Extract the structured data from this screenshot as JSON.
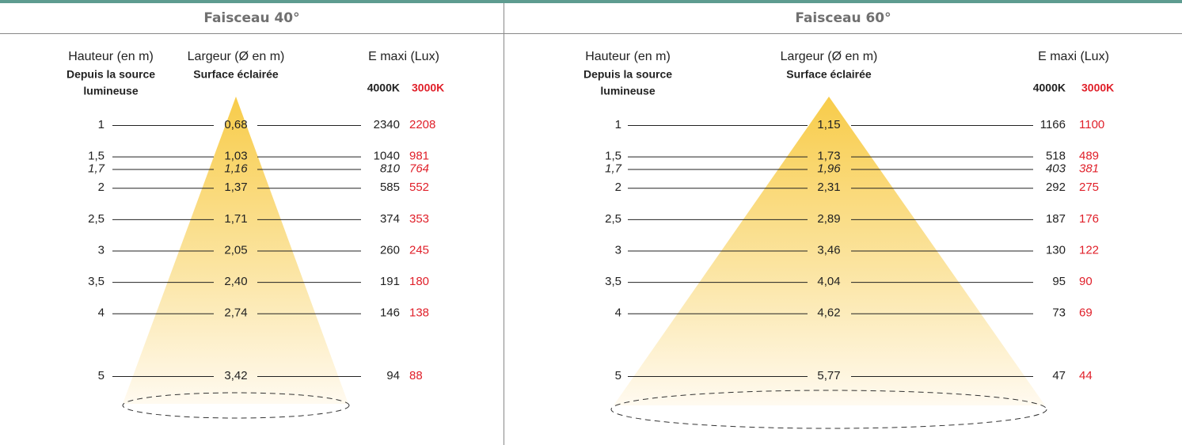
{
  "panels": [
    {
      "title": "Faisceau 40°",
      "headers": {
        "height": "Hauteur (en m)",
        "height_sub": [
          "Depuis la source",
          "lumineuse"
        ],
        "width": "Largeur (Ø en m)",
        "width_sub": "Surface éclairée",
        "lux": "E maxi (Lux)",
        "lux_4000": "4000K",
        "lux_3000": "3000K"
      },
      "rows": [
        {
          "height": "1",
          "width": "0,68",
          "lux_4000": "2340",
          "lux_3000": "2208"
        },
        {
          "height": "1,5",
          "width": "1,03",
          "lux_4000": "1040",
          "lux_3000": "981"
        },
        {
          "height": "1,7",
          "width": "1,16",
          "lux_4000": "810",
          "lux_3000": "764",
          "style": "italic"
        },
        {
          "height": "2",
          "width": "1,37",
          "lux_4000": "585",
          "lux_3000": "552"
        },
        {
          "height": "2,5",
          "width": "1,71",
          "lux_4000": "374",
          "lux_3000": "353"
        },
        {
          "height": "3",
          "width": "2,05",
          "lux_4000": "260",
          "lux_3000": "245"
        },
        {
          "height": "3,5",
          "width": "2,40",
          "lux_4000": "191",
          "lux_3000": "180"
        },
        {
          "height": "4",
          "width": "2,74",
          "lux_4000": "146",
          "lux_3000": "138"
        },
        {
          "height": "5",
          "width": "3,42",
          "lux_4000": "94",
          "lux_3000": "88"
        }
      ]
    },
    {
      "title": "Faisceau 60°",
      "headers": {
        "height": "Hauteur (en m)",
        "height_sub": [
          "Depuis la source",
          "lumineuse"
        ],
        "width": "Largeur (Ø en m)",
        "width_sub": "Surface éclairée",
        "lux": "E maxi (Lux)",
        "lux_4000": "4000K",
        "lux_3000": "3000K"
      },
      "rows": [
        {
          "height": "1",
          "width": "1,15",
          "lux_4000": "1166",
          "lux_3000": "1100"
        },
        {
          "height": "1,5",
          "width": "1,73",
          "lux_4000": "518",
          "lux_3000": "489"
        },
        {
          "height": "1,7",
          "width": "1,96",
          "lux_4000": "403",
          "lux_3000": "381",
          "style": "italic"
        },
        {
          "height": "2",
          "width": "2,31",
          "lux_4000": "292",
          "lux_3000": "275"
        },
        {
          "height": "2,5",
          "width": "2,89",
          "lux_4000": "187",
          "lux_3000": "176"
        },
        {
          "height": "3",
          "width": "3,46",
          "lux_4000": "130",
          "lux_3000": "122"
        },
        {
          "height": "3,5",
          "width": "4,04",
          "lux_4000": "95",
          "lux_3000": "90"
        },
        {
          "height": "4",
          "width": "4,62",
          "lux_4000": "73",
          "lux_3000": "69"
        },
        {
          "height": "5",
          "width": "5,77",
          "lux_4000": "47",
          "lux_3000": "44"
        }
      ]
    }
  ]
}
